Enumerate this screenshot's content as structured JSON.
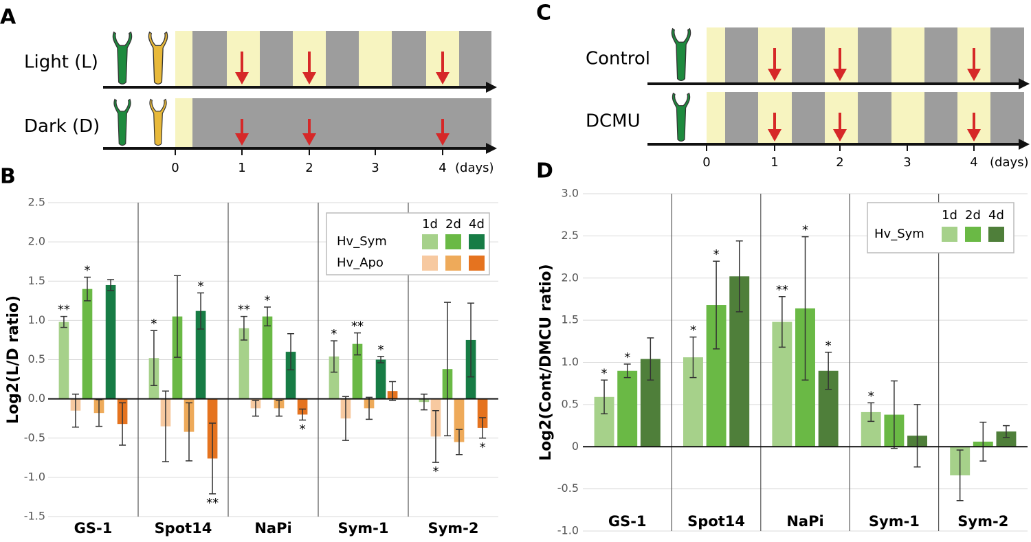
{
  "panels": {
    "A": {
      "label": "A",
      "rows": [
        "Light (L)",
        "Dark (D)"
      ],
      "days": [
        0,
        1,
        2,
        3,
        4
      ],
      "unit": "(days)"
    },
    "C": {
      "label": "C",
      "rows": [
        "Control",
        "DCMU"
      ],
      "days": [
        0,
        1,
        2,
        3,
        4
      ],
      "unit": "(days)"
    }
  },
  "chart_data": [
    {
      "type": "bar",
      "panel": "B",
      "ylabel": "Log2(L/D ratio)",
      "categories": [
        "GS-1",
        "Spot14",
        "NaPi",
        "Sym-1",
        "Sym-2"
      ],
      "ylim": [
        -1.5,
        2.5
      ],
      "yticks": [
        -1.5,
        {
          "value": -1,
          "label": "-1.0"
        },
        -0.5,
        {
          "value": 0,
          "label": "0.0"
        },
        0.5,
        {
          "value": 1,
          "label": "1.0"
        },
        1.5,
        {
          "value": 2,
          "label": "2.0"
        },
        2.5
      ],
      "grid": true,
      "periods": [
        "1d",
        "2d",
        "4d"
      ],
      "groups": [
        {
          "name": "Hv_Sym",
          "series": [
            {
              "color": "#a6d18a",
              "values": [
                0.98,
                0.52,
                0.9,
                0.54,
                -0.04
              ],
              "errors": [
                0.07,
                0.35,
                0.15,
                0.2,
                0.1
              ],
              "annotations": [
                "**",
                "*",
                "**",
                "*",
                null
              ]
            },
            {
              "color": "#6ab945",
              "values": [
                1.4,
                1.05,
                1.05,
                0.7,
                0.38
              ],
              "errors": [
                0.15,
                0.52,
                0.12,
                0.14,
                0.85
              ],
              "annotations": [
                "*",
                null,
                "*",
                "**",
                null
              ]
            },
            {
              "color": "#177c45",
              "values": [
                1.45,
                1.12,
                0.6,
                0.5,
                0.75
              ],
              "errors": [
                0.07,
                0.23,
                0.23,
                0.04,
                0.47
              ],
              "annotations": [
                null,
                "*",
                null,
                "*",
                null
              ]
            }
          ]
        },
        {
          "name": "Hv_Apo",
          "series": [
            {
              "color": "#f7c9a0",
              "values": [
                -0.15,
                -0.35,
                -0.12,
                -0.25,
                -0.48
              ],
              "errors": [
                0.21,
                0.45,
                0.1,
                0.28,
                0.33
              ],
              "annotations": [
                null,
                null,
                null,
                null,
                "*"
              ]
            },
            {
              "color": "#eeaa5a",
              "values": [
                -0.18,
                -0.42,
                -0.12,
                -0.12,
                -0.55
              ],
              "errors": [
                0.17,
                0.37,
                0.1,
                0.14,
                0.16
              ],
              "annotations": [
                null,
                null,
                null,
                null,
                null
              ]
            },
            {
              "color": "#e5731f",
              "values": [
                -0.32,
                -0.76,
                -0.2,
                0.1,
                -0.37
              ],
              "errors": [
                0.27,
                0.45,
                0.07,
                0.12,
                0.13
              ],
              "annotations": [
                null,
                "**",
                "*",
                null,
                "*"
              ]
            }
          ]
        }
      ]
    },
    {
      "type": "bar",
      "panel": "D",
      "ylabel": "Log2(Cont/DMCU ratio)",
      "categories": [
        "GS-1",
        "Spot14",
        "NaPi",
        "Sym-1",
        "Sym-2"
      ],
      "ylim": [
        -1,
        3
      ],
      "yticks": [
        {
          "value": -1,
          "label": "-1.0"
        },
        -0.5,
        0,
        0.5,
        {
          "value": 1,
          "label": "1.0"
        },
        1.5,
        {
          "value": 2,
          "label": "2.0"
        },
        2.5,
        {
          "value": 3,
          "label": "3.0"
        }
      ],
      "grid": true,
      "periods": [
        "1d",
        "2d",
        "4d"
      ],
      "groups": [
        {
          "name": "Hv_Sym",
          "series": [
            {
              "color": "#a6d18a",
              "values": [
                0.59,
                1.06,
                1.48,
                0.41,
                -0.34
              ],
              "errors": [
                0.2,
                0.24,
                0.3,
                0.11,
                0.3
              ],
              "annotations": [
                "*",
                "*",
                "**",
                "*",
                null
              ]
            },
            {
              "color": "#6ab945",
              "values": [
                0.9,
                1.68,
                1.64,
                0.38,
                0.06
              ],
              "errors": [
                0.08,
                0.52,
                0.85,
                0.4,
                0.23
              ],
              "annotations": [
                "*",
                "*",
                "*",
                null,
                null
              ]
            },
            {
              "color": "#4f7f3a",
              "values": [
                1.04,
                2.02,
                0.9,
                0.13,
                0.18
              ],
              "errors": [
                0.25,
                0.42,
                0.22,
                0.37,
                0.07
              ],
              "annotations": [
                null,
                null,
                "*",
                null,
                null
              ]
            }
          ]
        }
      ]
    }
  ]
}
